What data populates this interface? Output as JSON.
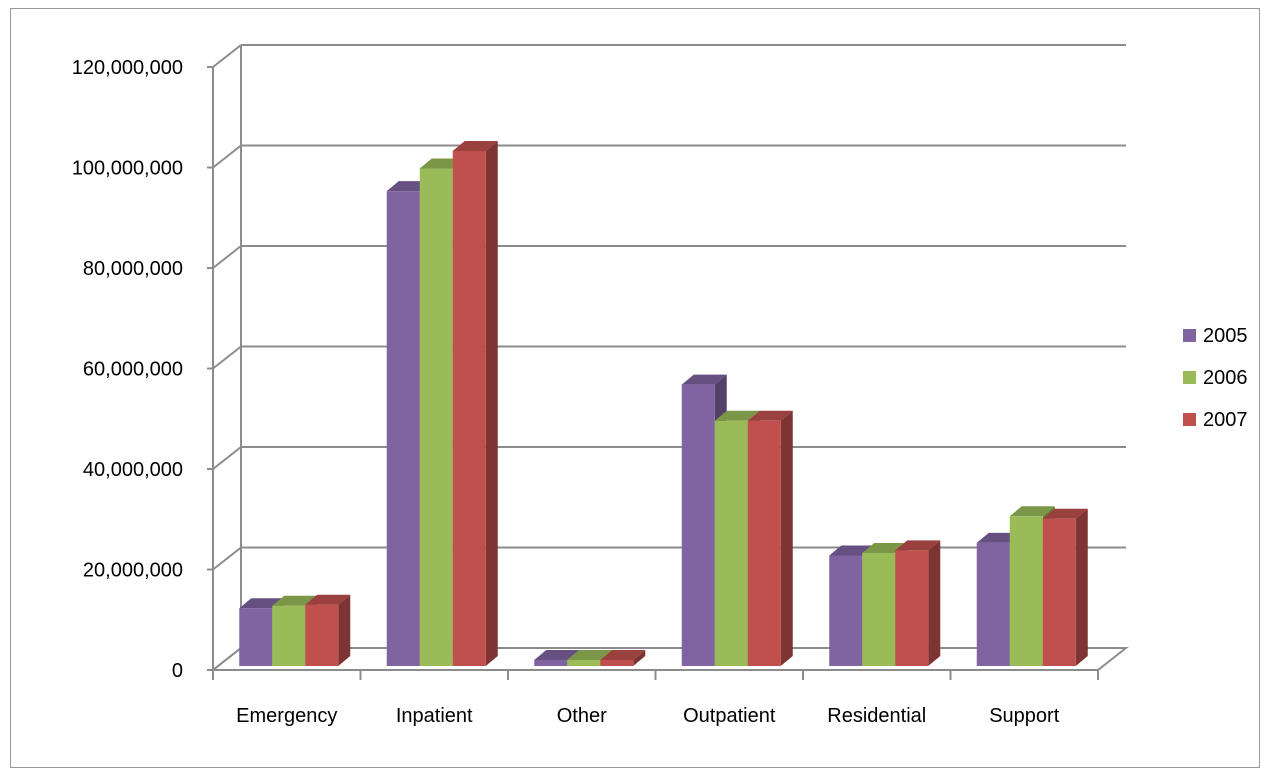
{
  "chart_data": {
    "type": "bar",
    "title": "",
    "xlabel": "",
    "ylabel": "",
    "categories": [
      "Emergency",
      "Inpatient",
      "Other",
      "Outpatient",
      "Residential",
      "Support"
    ],
    "series": [
      {
        "name": "2005",
        "color": "#8064A2",
        "values": [
          11500000,
          94500000,
          1200000,
          56000000,
          22000000,
          24500000
        ]
      },
      {
        "name": "2006",
        "color": "#9BBB59",
        "values": [
          12000000,
          99000000,
          1200000,
          48800000,
          22500000,
          29800000
        ]
      },
      {
        "name": "2007",
        "color": "#C0504D",
        "values": [
          12200000,
          102500000,
          1200000,
          48800000,
          23000000,
          29300000
        ]
      }
    ],
    "ylim": [
      0,
      120000000
    ],
    "yticks": [
      0,
      20000000,
      40000000,
      60000000,
      80000000,
      100000000,
      120000000
    ],
    "ytick_labels": [
      "0",
      "20,000,000",
      "40,000,000",
      "60,000,000",
      "80,000,000",
      "100,000,000",
      "120,000,000"
    ],
    "grid": true,
    "legend_position": "right",
    "style": "3d-clustered-column"
  }
}
